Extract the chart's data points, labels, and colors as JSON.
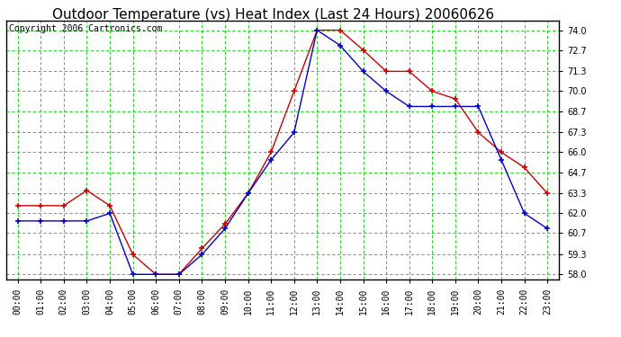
{
  "title": "Outdoor Temperature (vs) Heat Index (Last 24 Hours) 20060626",
  "copyright": "Copyright 2006 Cartronics.com",
  "x_labels": [
    "00:00",
    "01:00",
    "02:00",
    "03:00",
    "04:00",
    "05:00",
    "06:00",
    "07:00",
    "08:00",
    "09:00",
    "10:00",
    "11:00",
    "12:00",
    "13:00",
    "14:00",
    "15:00",
    "16:00",
    "17:00",
    "18:00",
    "19:00",
    "20:00",
    "21:00",
    "22:00",
    "23:00"
  ],
  "y_ticks": [
    58.0,
    59.3,
    60.7,
    62.0,
    63.3,
    64.7,
    66.0,
    67.3,
    68.7,
    70.0,
    71.3,
    72.7,
    74.0
  ],
  "ylim": [
    57.65,
    74.65
  ],
  "red_data": [
    62.5,
    62.5,
    62.5,
    63.5,
    62.5,
    59.3,
    58.0,
    58.0,
    59.7,
    61.3,
    63.3,
    66.0,
    70.0,
    74.0,
    74.0,
    72.7,
    71.3,
    71.3,
    70.0,
    69.5,
    67.3,
    66.0,
    65.0,
    63.3
  ],
  "blue_data": [
    61.5,
    61.5,
    61.5,
    61.5,
    62.0,
    58.0,
    58.0,
    58.0,
    59.3,
    61.0,
    63.3,
    65.5,
    67.3,
    74.0,
    73.0,
    71.3,
    70.0,
    69.0,
    69.0,
    69.0,
    69.0,
    65.5,
    62.0,
    61.0
  ],
  "red_color": "#cc0000",
  "blue_color": "#0000cc",
  "bg_color": "#ffffff",
  "plot_bg_color": "#ffffff",
  "grid_major_color": "#00cc00",
  "grid_minor_color": "#00cc00",
  "border_color": "#000000",
  "title_fontsize": 11,
  "copyright_fontsize": 7
}
